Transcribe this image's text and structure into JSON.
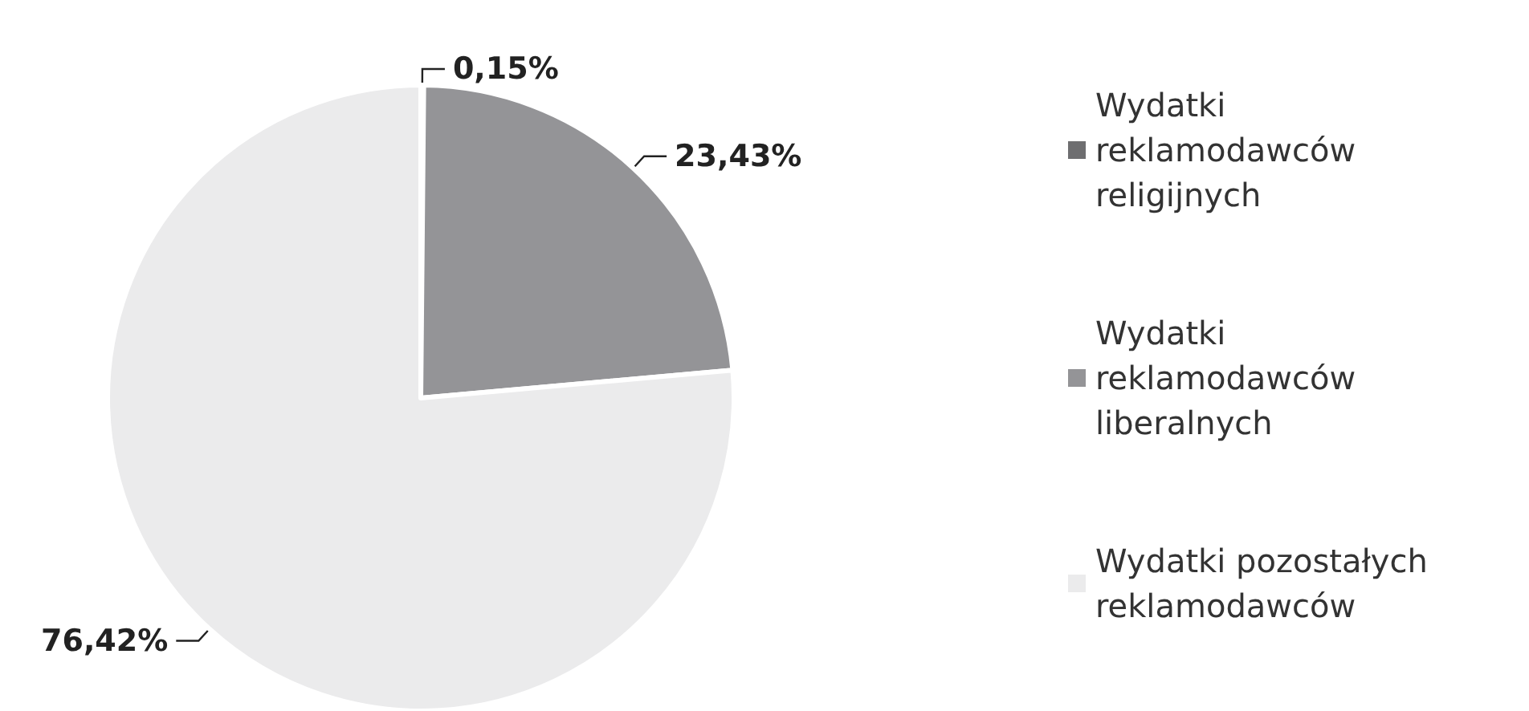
{
  "chart_data": {
    "type": "pie",
    "categories": [
      "Wydatki reklamodawców religijnych",
      "Wydatki reklamodawców liberalnych",
      "Wydatki pozostałych reklamodawców"
    ],
    "values": [
      0.15,
      23.43,
      76.42
    ],
    "value_labels": [
      "0,15%",
      "23,43%",
      "76,42%"
    ],
    "colors": [
      "#6e6e70",
      "#949497",
      "#ebebec"
    ],
    "legend": "right"
  }
}
